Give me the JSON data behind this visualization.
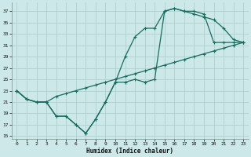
{
  "xlabel": "Humidex (Indice chaleur)",
  "bg_color": "#cce8e8",
  "grid_color": "#aacccc",
  "line_color": "#1a6b60",
  "xlim": [
    -0.5,
    23.5
  ],
  "ylim": [
    14.5,
    38.5
  ],
  "xticks": [
    0,
    1,
    2,
    3,
    4,
    5,
    6,
    7,
    8,
    9,
    10,
    11,
    12,
    13,
    14,
    15,
    16,
    17,
    18,
    19,
    20,
    21,
    22,
    23
  ],
  "yticks": [
    15,
    17,
    19,
    21,
    23,
    25,
    27,
    29,
    31,
    33,
    35,
    37
  ],
  "series1_x": [
    0,
    1,
    2,
    3,
    4,
    5,
    6,
    7,
    8,
    9,
    10,
    11,
    12,
    13,
    14,
    15,
    16,
    17,
    18,
    19,
    20,
    21,
    22,
    23
  ],
  "series1_y": [
    23.0,
    21.5,
    21.0,
    21.0,
    18.5,
    18.5,
    17.0,
    15.5,
    18.0,
    21.0,
    24.5,
    24.5,
    25.0,
    24.5,
    25.0,
    37.0,
    37.5,
    37.0,
    37.0,
    36.5,
    31.5,
    31.5,
    31.5,
    31.5
  ],
  "series2_x": [
    0,
    1,
    2,
    3,
    4,
    5,
    6,
    7,
    8,
    9,
    10,
    11,
    12,
    13,
    14,
    15,
    16,
    17,
    18,
    19,
    20,
    21,
    22,
    23
  ],
  "series2_y": [
    23.0,
    21.5,
    21.0,
    21.0,
    18.5,
    18.5,
    17.0,
    15.5,
    18.0,
    21.0,
    24.5,
    29.0,
    32.5,
    34.0,
    34.0,
    37.0,
    37.5,
    37.0,
    36.5,
    36.0,
    35.5,
    34.0,
    32.0,
    31.5
  ],
  "series3_x": [
    0,
    1,
    2,
    3,
    4,
    5,
    6,
    7,
    8,
    9,
    10,
    11,
    12,
    13,
    14,
    15,
    16,
    17,
    18,
    19,
    20,
    21,
    22,
    23
  ],
  "series3_y": [
    23.0,
    21.5,
    21.0,
    21.0,
    22.0,
    22.5,
    23.0,
    23.5,
    24.0,
    24.5,
    25.0,
    25.5,
    26.0,
    26.5,
    27.0,
    27.5,
    28.0,
    28.5,
    29.0,
    29.5,
    30.0,
    30.5,
    31.0,
    31.5
  ]
}
